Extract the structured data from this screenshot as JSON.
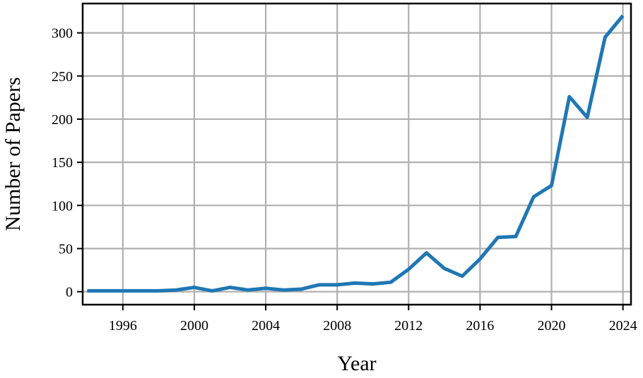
{
  "chart_data": {
    "type": "line",
    "xlabel": "Year",
    "ylabel": "Number of Papers",
    "xlim": [
      1993.75,
      2024.45
    ],
    "ylim": [
      -15,
      334
    ],
    "x_ticks": [
      1996,
      2000,
      2004,
      2008,
      2012,
      2016,
      2020,
      2024
    ],
    "y_ticks": [
      0,
      50,
      100,
      150,
      200,
      250,
      300
    ],
    "grid": true,
    "legend": "none",
    "series": [
      {
        "color": "#1f77b4",
        "x": [
          1994,
          1995,
          1996,
          1997,
          1998,
          1999,
          2000,
          2001,
          2002,
          2003,
          2004,
          2005,
          2006,
          2007,
          2008,
          2009,
          2010,
          2011,
          2012,
          2013,
          2014,
          2015,
          2016,
          2017,
          2018,
          2019,
          2020,
          2021,
          2022,
          2023,
          2024
        ],
        "y": [
          1,
          1,
          1,
          1,
          1,
          2,
          5,
          1,
          5,
          2,
          4,
          2,
          3,
          8,
          8,
          10,
          9,
          11,
          26,
          45,
          27,
          18,
          38,
          63,
          64,
          110,
          123,
          226,
          202,
          295,
          320
        ]
      }
    ]
  }
}
